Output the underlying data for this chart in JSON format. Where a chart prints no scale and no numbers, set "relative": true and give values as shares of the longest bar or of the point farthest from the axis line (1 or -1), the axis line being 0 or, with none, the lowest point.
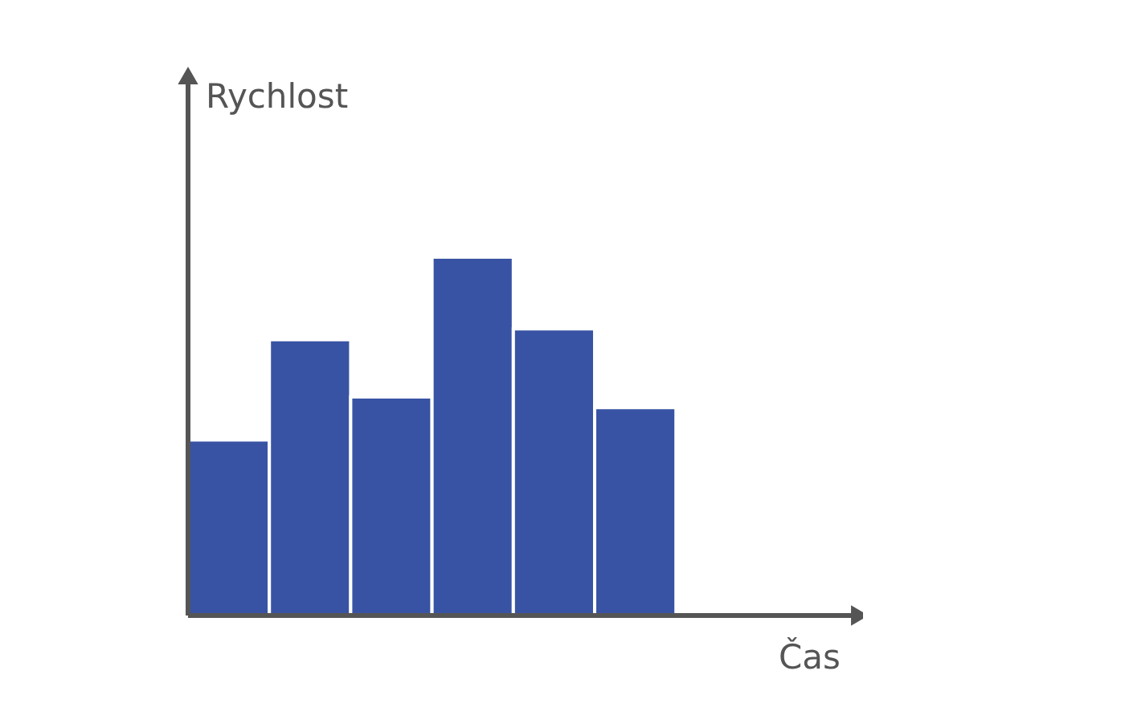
{
  "chart_data": {
    "type": "bar",
    "relative": true,
    "xlabel": "Čas",
    "ylabel": "Rychlost",
    "categories": [
      null,
      null,
      null,
      null,
      null,
      null
    ],
    "values": [
      0.49,
      0.77,
      0.61,
      1,
      0.8,
      0.58
    ],
    "color": "#3953a4"
  }
}
